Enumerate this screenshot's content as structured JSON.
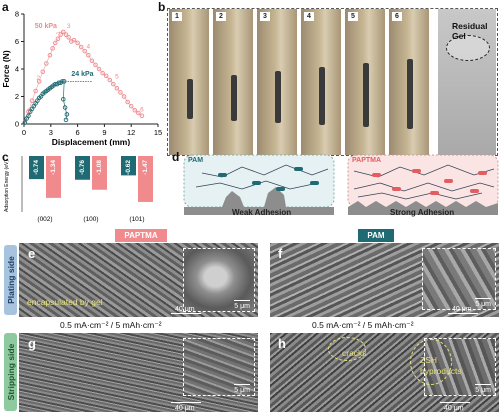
{
  "figure": {
    "panel_letters": {
      "a": "a",
      "b": "b",
      "c": "c",
      "d": "d",
      "e": "e",
      "f": "f",
      "g": "g",
      "h": "h"
    },
    "colors": {
      "pink": "#f08a8c",
      "teal": "#1f6a73",
      "pink_line": "#e5a9ab",
      "teal_dark": "#1c5e66"
    }
  },
  "panel_a": {
    "xlabel": "Displacement (mm)",
    "ylabel": "Force (N)",
    "labels": {
      "high": "50 kPa",
      "low": "24 kPa"
    },
    "point_numbers": [
      "1",
      "2",
      "3",
      "4",
      "5",
      "6"
    ]
  },
  "panel_b": {
    "photo_numbers": [
      "1",
      "2",
      "3",
      "4",
      "5",
      "6"
    ],
    "residual_label": "Residual Gel"
  },
  "panel_c": {
    "ylabel": "Adsorption Energy (eV)",
    "groups": [
      "(002)",
      "(100)",
      "(101)"
    ]
  },
  "panel_d": {
    "left_tag": "PAM",
    "left_caption": "Weak Adhesion",
    "right_tag": "PAPTMA",
    "right_caption": "Strong Adhesion"
  },
  "sem": {
    "col_left_title": "PAPTMA",
    "col_right_title": "PAM",
    "plating_side": "Plating side",
    "stripping_side": "Stripping side",
    "condition_left": "0.5 mA·cm⁻² / 5 mAh·cm⁻²",
    "condition_right": "0.5 mA·cm⁻² / 5 mAh·cm⁻²",
    "e_note": "encapsulated by gel",
    "h_cracks": "cracks",
    "h_zsh": "ZSH",
    "h_byproducts": "byproducts",
    "scale_inset": "5 μm",
    "scale_main": "40 μm"
  },
  "chart_data": [
    {
      "type": "scatter",
      "panel": "a",
      "xlabel": "Displacement (mm)",
      "ylabel": "Force (N)",
      "xlim": [
        0,
        15
      ],
      "ylim": [
        0,
        8
      ],
      "xticks": [
        0,
        3,
        6,
        9,
        12,
        15
      ],
      "yticks": [
        0,
        2,
        4,
        6,
        8
      ],
      "series": [
        {
          "name": "50 kPa",
          "color": "#f08a8c",
          "x": [
            0.1,
            0.5,
            0.9,
            1.3,
            1.7,
            2.1,
            2.5,
            2.9,
            3.2,
            3.5,
            3.8,
            4.1,
            4.4,
            4.7,
            5.0,
            5.3,
            5.6,
            6.0,
            6.4,
            6.8,
            7.2,
            7.6,
            8.0,
            8.4,
            8.8,
            9.2,
            9.6,
            10.0,
            10.4,
            10.8,
            11.2,
            11.6,
            12.0,
            12.4,
            12.8,
            13.2
          ],
          "y": [
            0.1,
            0.9,
            1.7,
            2.4,
            3.1,
            3.8,
            4.4,
            5.0,
            5.5,
            5.9,
            6.2,
            6.5,
            6.7,
            6.5,
            6.3,
            6.0,
            6.1,
            5.9,
            5.6,
            5.3,
            5.0,
            4.6,
            4.3,
            4.0,
            3.7,
            3.5,
            3.2,
            2.9,
            2.6,
            2.3,
            2.0,
            1.6,
            1.3,
            1.0,
            0.8,
            0.6
          ]
        },
        {
          "name": "24 kPa",
          "color": "#1f6a73",
          "x": [
            0.1,
            0.3,
            0.5,
            0.7,
            0.9,
            1.1,
            1.3,
            1.5,
            1.7,
            1.9,
            2.1,
            2.3,
            2.5,
            2.7,
            2.9,
            3.1,
            3.3,
            3.5,
            3.7,
            3.9,
            4.1,
            4.3,
            4.5,
            4.4,
            4.6,
            4.8,
            4.7
          ],
          "y": [
            0.1,
            0.4,
            0.6,
            0.9,
            1.1,
            1.3,
            1.5,
            1.7,
            1.9,
            2.0,
            2.2,
            2.3,
            2.4,
            2.5,
            2.6,
            2.7,
            2.8,
            2.9,
            2.9,
            3.0,
            3.0,
            3.1,
            3.1,
            1.8,
            1.2,
            0.7,
            0.3
          ]
        }
      ]
    },
    {
      "type": "bar",
      "panel": "c",
      "ylabel": "Adsorption Energy (eV)",
      "categories": [
        "(002)",
        "(100)",
        "(101)"
      ],
      "series": [
        {
          "name": "",
          "color": "#1f6a73",
          "values": [
            -0.74,
            -0.76,
            -0.62
          ]
        },
        {
          "name": "",
          "color": "#f08a8c",
          "values": [
            -1.34,
            -1.08,
            -1.47
          ]
        }
      ]
    }
  ]
}
